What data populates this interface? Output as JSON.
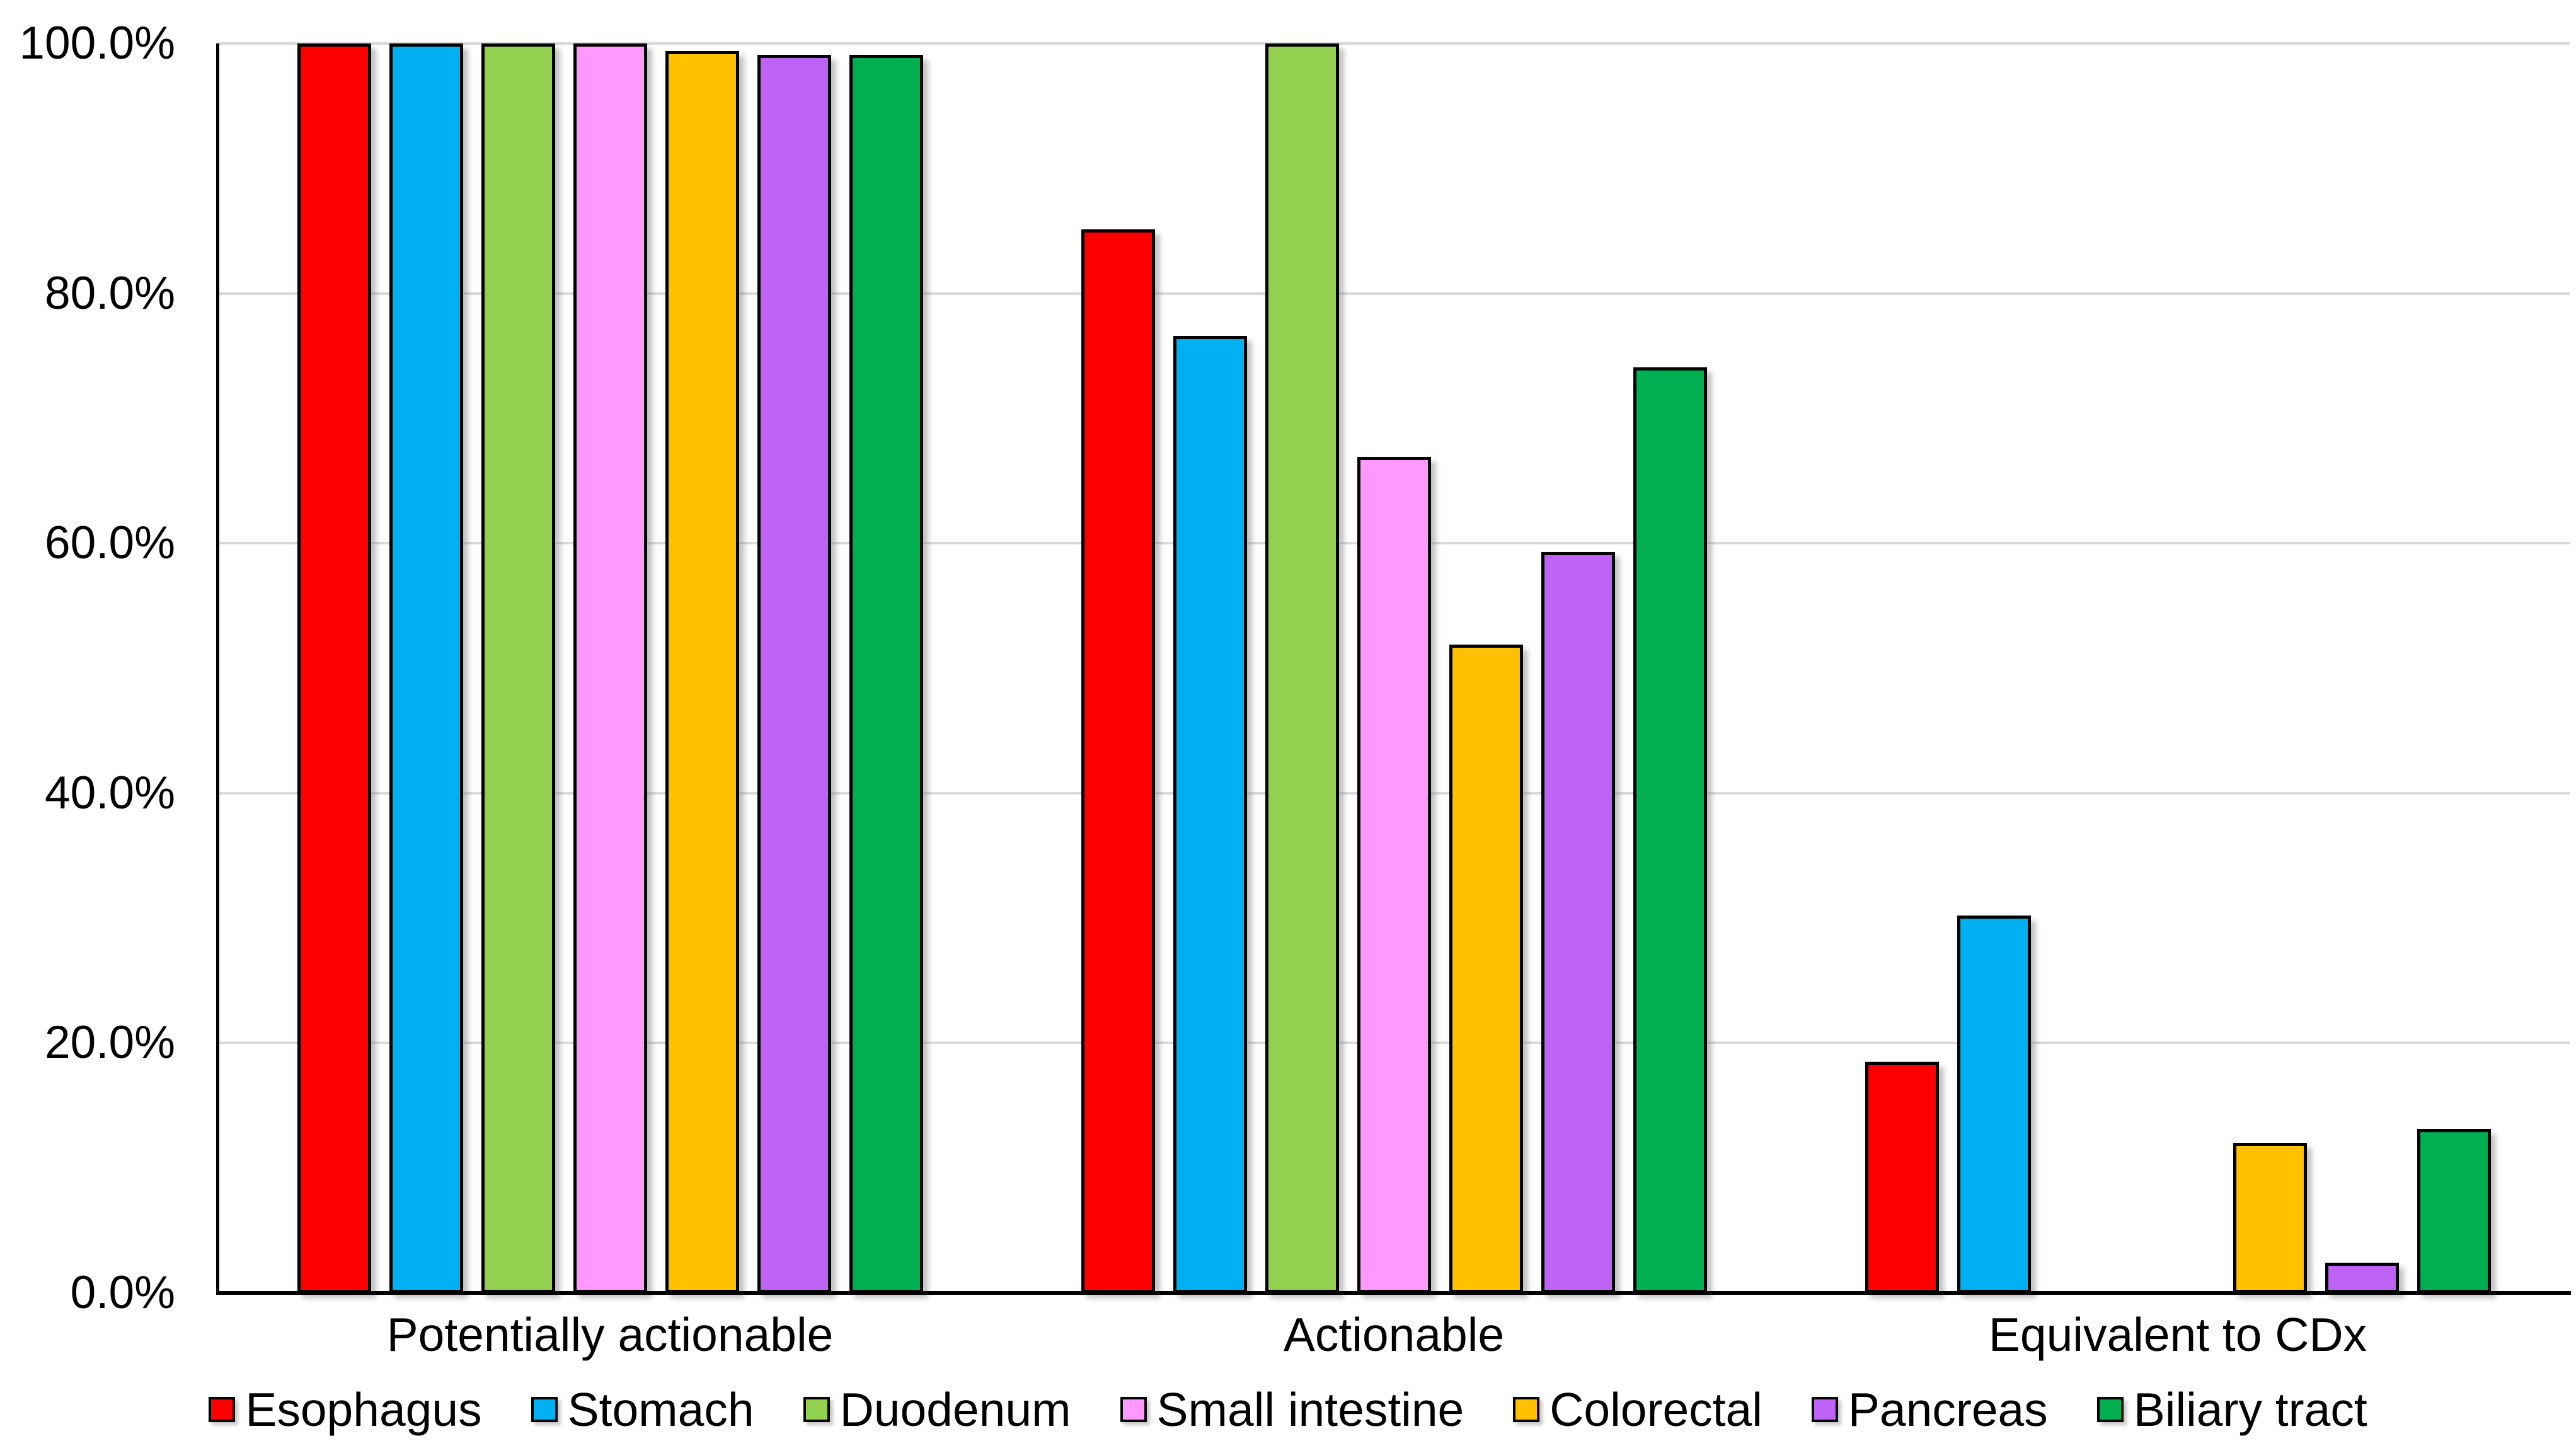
{
  "chart_data": {
    "type": "bar",
    "title": "",
    "xlabel": "",
    "ylabel": "",
    "ylim": [
      0,
      100
    ],
    "grid": true,
    "legend_position": "bottom",
    "categories": [
      "Potentially actionable",
      "Actionable",
      "Equivalent to CDx"
    ],
    "series": [
      {
        "name": "Esophagus",
        "color": "#FF0000",
        "values": [
          100.0,
          85.1,
          18.5
        ]
      },
      {
        "name": "Stomach",
        "color": "#00B0F0",
        "values": [
          100.0,
          76.6,
          30.2
        ]
      },
      {
        "name": "Duodenum",
        "color": "#92D050",
        "values": [
          100.0,
          100.0,
          0.0
        ]
      },
      {
        "name": "Small intestine",
        "color": "#FF99FF",
        "values": [
          100.0,
          66.9,
          0.0
        ]
      },
      {
        "name": "Colorectal",
        "color": "#FFC000",
        "values": [
          99.4,
          51.9,
          12.0
        ]
      },
      {
        "name": "Pancreas",
        "color": "#BF63F7",
        "values": [
          99.1,
          59.3,
          2.4
        ]
      },
      {
        "name": "Biliary tract",
        "color": "#00B050",
        "values": [
          99.1,
          74.1,
          13.1
        ]
      }
    ],
    "yticks": [
      {
        "label": "0.0%",
        "value": 0
      },
      {
        "label": "20.0%",
        "value": 20
      },
      {
        "label": "40.0%",
        "value": 40
      },
      {
        "label": "60.0%",
        "value": 60
      },
      {
        "label": "80.0%",
        "value": 80
      },
      {
        "label": "100.0%",
        "value": 100
      }
    ],
    "colors": {
      "axis": "#000000",
      "gridline": "#D9D9D9",
      "background": "#FFFFFF",
      "text": "#000000"
    }
  }
}
